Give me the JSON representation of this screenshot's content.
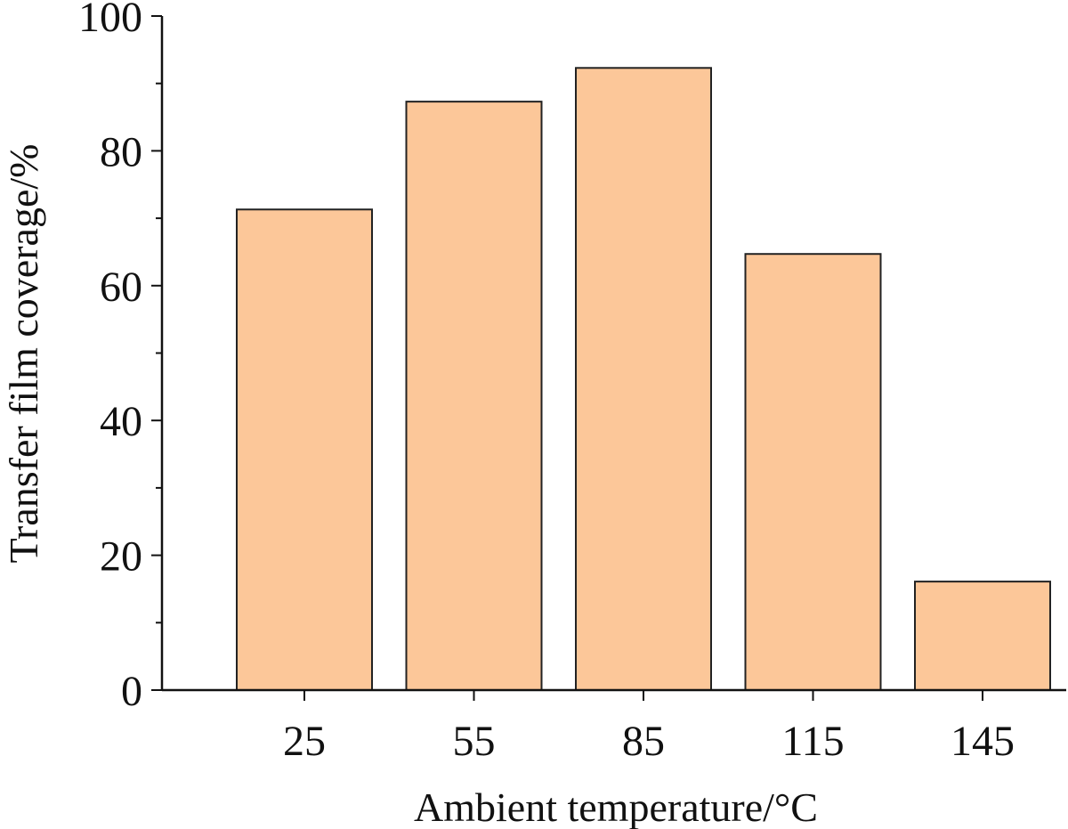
{
  "chart_data": {
    "type": "bar",
    "title": "",
    "xlabel": "Ambient temperature/°C",
    "ylabel": "Transfer film coverage/%",
    "categories": [
      "25",
      "55",
      "85",
      "115",
      "145"
    ],
    "series": [
      {
        "values": [
          71.3,
          87.3,
          92.3,
          64.7,
          16.1
        ]
      }
    ],
    "ylim": [
      0,
      100
    ],
    "yticks": [
      "0",
      "20",
      "40",
      "60",
      "80",
      "100"
    ],
    "y_minor_ticks": true,
    "grid": false,
    "legend": "none",
    "colors": {
      "bar_fill": "#FCC799",
      "bar_stroke": "#222222",
      "axis": "#111111"
    }
  }
}
